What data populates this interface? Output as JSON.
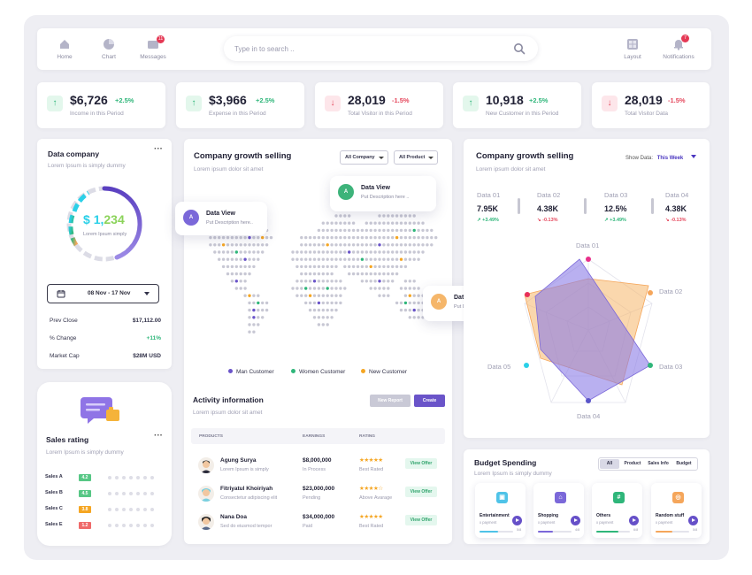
{
  "nav": {
    "home": "Home",
    "chart": "Chart",
    "messages": "Messages",
    "messages_badge": "11",
    "layout": "Layout",
    "notifications": "Notifications",
    "notifications_badge": "7"
  },
  "search": {
    "placeholder": "Type in to search .."
  },
  "stats": [
    {
      "value": "$6,726",
      "change": "+2.5%",
      "label": "Income in this Period",
      "trend": "up"
    },
    {
      "value": "$3,966",
      "change": "+2.5%",
      "label": "Expense in this Period",
      "trend": "up"
    },
    {
      "value": "28,019",
      "change": "-1.5%",
      "label": "Total Visitor in this Period",
      "trend": "down"
    },
    {
      "value": "10,918",
      "change": "+2.5%",
      "label": "New Customer in this Period",
      "trend": "up"
    },
    {
      "value": "28,019",
      "change": "-1.5%",
      "label": "Total Visitor Data",
      "trend": "down"
    }
  ],
  "data_company": {
    "title": "Data company",
    "subtitle": "Lorem Ipsum is simply dummy",
    "gauge_value_prefix": "$ ",
    "gauge_value_main": "1,",
    "gauge_value_rest": "234",
    "gauge_caption": "Lorem Ipsum simply",
    "date_range": "08 Nov - 17 Nov",
    "rows": [
      {
        "label": "Prev Close",
        "value": "$17,112.00"
      },
      {
        "label": "% Change",
        "value": "+11%"
      },
      {
        "label": "Market Cap",
        "value": "$28M USD"
      }
    ]
  },
  "sales_rating": {
    "title": "Sales rating",
    "subtitle": "Lorem Ipsum is simply dummy",
    "rows": [
      {
        "label": "Sales A",
        "badge": "4.2",
        "color": "#57c785"
      },
      {
        "label": "Sales B",
        "badge": "4.5",
        "color": "#57c785"
      },
      {
        "label": "Sales C",
        "badge": "3.8",
        "color": "#f5a623"
      },
      {
        "label": "Sales E",
        "badge": "1.2",
        "color": "#ef6a6a"
      }
    ]
  },
  "map_card": {
    "title": "Company growth selling",
    "subtitle": "Lorem ipsum dolor sit amet",
    "filter1": "All Company",
    "filter2": "All Product",
    "popups": [
      {
        "avatar": "A",
        "title": "Data View",
        "desc": "Put Description here..",
        "color": "#7b68d9"
      },
      {
        "avatar": "A",
        "title": "Data View",
        "desc": "Put Description here ..",
        "color": "#3db37a"
      },
      {
        "avatar": "A",
        "title": "Data View",
        "desc": "Put Description here ..",
        "color": "#f5b66a"
      }
    ],
    "legend": [
      {
        "label": "Man Customer",
        "color": "#6a54c9"
      },
      {
        "label": "Women Customer",
        "color": "#2fb67a"
      },
      {
        "label": "New Customer",
        "color": "#f5a623"
      }
    ]
  },
  "activity": {
    "title": "Activity information",
    "subtitle": "Lorem ipsum dolor sit amet",
    "new_report": "New Report",
    "create": "Create",
    "columns": [
      "PRODUCTS",
      "EARNINGS",
      "RATING"
    ],
    "rows": [
      {
        "name": "Agung Surya",
        "desc": "Lorem Ipsum is simply",
        "earning": "$8,000,000",
        "status": "In Process",
        "stars": "★★★★★",
        "rating": "Best Rated",
        "action": "View Offer"
      },
      {
        "name": "Fitriyatul Khoiriyah",
        "desc": "Consectetur adipiscing elit",
        "earning": "$23,000,000",
        "status": "Pending",
        "stars": "★★★★☆",
        "rating": "Above Avarage",
        "action": "View Offer"
      },
      {
        "name": "Nana Doa",
        "desc": "Sed do eiusmod tempor",
        "earning": "$34,000,000",
        "status": "Paid",
        "stars": "★★★★★",
        "rating": "Best Rated",
        "action": "View Offer"
      }
    ]
  },
  "growth": {
    "title": "Company growth selling",
    "subtitle": "Lorem ipsum dolor sit amet",
    "show_data_label": "Show Data:",
    "show_data_value": "This Week",
    "metrics": [
      {
        "label": "Data 01",
        "value": "7.95K",
        "change": "+3.49%",
        "trend": "up"
      },
      {
        "label": "Data 02",
        "value": "4.38K",
        "change": "-0.13%",
        "trend": "down"
      },
      {
        "label": "Data 03",
        "value": "12.5%",
        "change": "+3.49%",
        "trend": "up"
      },
      {
        "label": "Data 04",
        "value": "4.38K",
        "change": "-0.13%",
        "trend": "down"
      }
    ],
    "radar_axes": [
      "Data 01",
      "Data 02",
      "Data 03",
      "Data 04",
      "Data 05"
    ],
    "radar_axis_colors": [
      "#e8308a",
      "#f5a65b",
      "#2fb67a",
      "#5a55c9",
      "#2ad0e8",
      "#e8305a"
    ]
  },
  "budget": {
    "title": "Budget Spending",
    "subtitle": "Lorem Ipsum is simply dummy",
    "tabs": [
      "All",
      "Product",
      "Sales Info",
      "Budget"
    ],
    "cards": [
      {
        "title": "Entertainment",
        "sub": "x payment",
        "num": "5/8",
        "color": "#4fc3e8",
        "icon": "▣",
        "fill": 0.55
      },
      {
        "title": "Shopping",
        "sub": "x payment",
        "num": "4/8",
        "color": "#7b68d9",
        "icon": "⌂",
        "fill": 0.45
      },
      {
        "title": "Others",
        "sub": "x payment",
        "num": "6/8",
        "color": "#2fb67a",
        "icon": "#",
        "fill": 0.65
      },
      {
        "title": "Random stuff",
        "sub": "x payment",
        "num": "5/8",
        "color": "#f5a65b",
        "icon": "◎",
        "fill": 0.5
      }
    ]
  }
}
